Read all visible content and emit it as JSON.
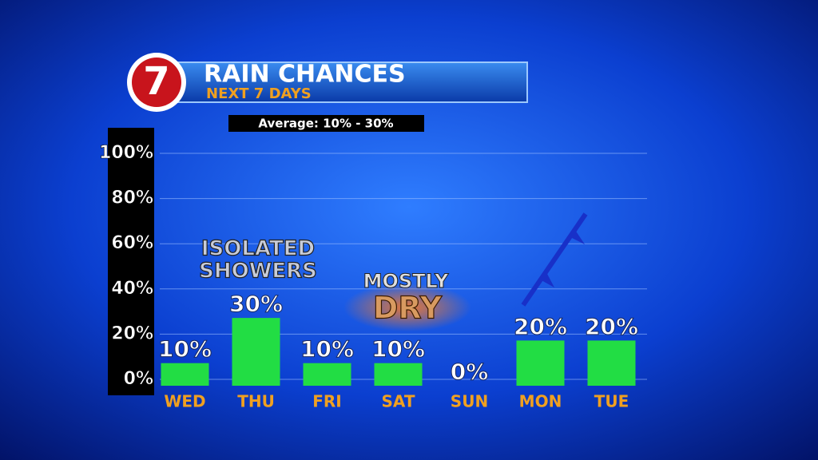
{
  "header": {
    "logo": "7",
    "title": "RAIN CHANCES",
    "subtitle": "NEXT 7 DAYS",
    "note": "Average: 10% - 30%"
  },
  "chart_data": {
    "type": "bar",
    "categories": [
      "WED",
      "THU",
      "FRI",
      "SAT",
      "SUN",
      "MON",
      "TUE"
    ],
    "values": [
      10,
      30,
      10,
      10,
      0,
      20,
      20
    ],
    "value_labels": [
      "10%",
      "30%",
      "10%",
      "10%",
      "0%",
      "20%",
      "20%"
    ],
    "color": "#22dd44",
    "ylim": [
      0,
      100
    ],
    "yticks": [
      {
        "value": 0,
        "label": "0%"
      },
      {
        "value": 20,
        "label": "20%"
      },
      {
        "value": 40,
        "label": "40%"
      },
      {
        "value": 60,
        "label": "60%"
      },
      {
        "value": 80,
        "label": "80%"
      },
      {
        "value": 100,
        "label": "100%"
      }
    ],
    "grid": true,
    "annotations": [
      "ISOLATED",
      "SHOWERS",
      "MOSTLY",
      "DRY"
    ]
  }
}
